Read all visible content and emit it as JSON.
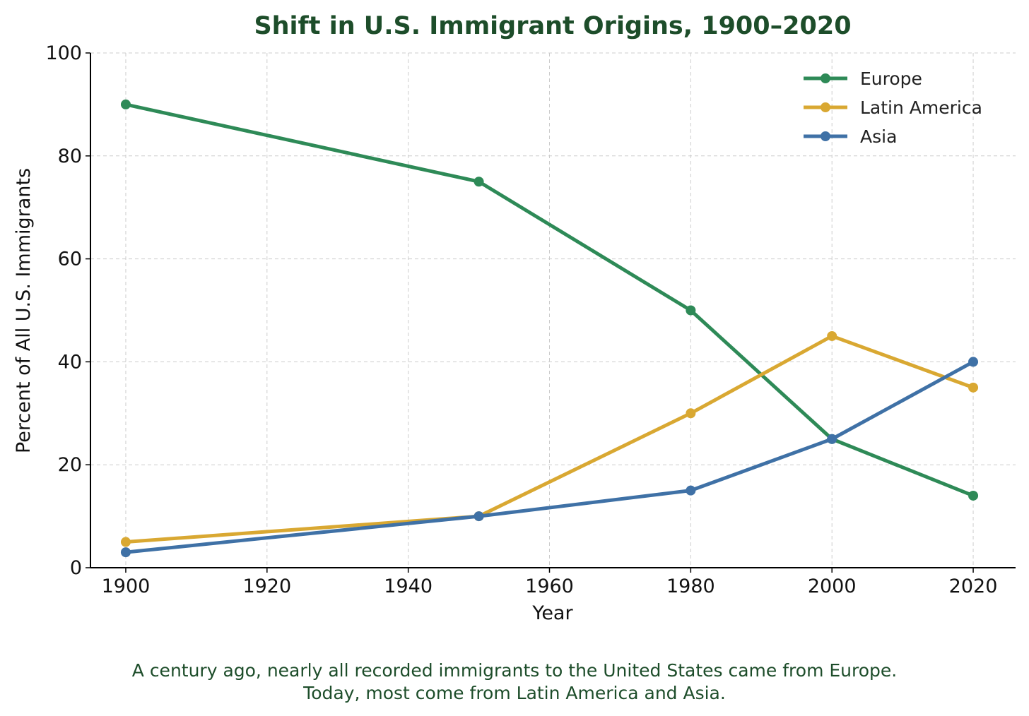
{
  "chart_data": {
    "type": "line",
    "title": "Shift in U.S. Immigrant Origins, 1900–2020",
    "xlabel": "Year",
    "ylabel": "Percent of All U.S. Immigrants",
    "xlim": [
      1895,
      2026
    ],
    "ylim": [
      0,
      100
    ],
    "xticks": [
      1900,
      1920,
      1940,
      1960,
      1980,
      2000,
      2020
    ],
    "yticks": [
      0,
      20,
      40,
      60,
      80,
      100
    ],
    "grid": true,
    "legend_position": "top-right",
    "series": [
      {
        "name": "Europe",
        "color": "#2e8a57",
        "x": [
          1900,
          1950,
          1980,
          2000,
          2020
        ],
        "y": [
          90,
          75,
          50,
          25,
          14
        ]
      },
      {
        "name": "Latin America",
        "color": "#d9a832",
        "x": [
          1900,
          1950,
          1980,
          2000,
          2020
        ],
        "y": [
          5,
          10,
          30,
          45,
          35
        ]
      },
      {
        "name": "Asia",
        "color": "#3f71a6",
        "x": [
          1900,
          1950,
          1980,
          2000,
          2020
        ],
        "y": [
          3,
          10,
          15,
          25,
          40
        ]
      }
    ]
  },
  "caption": {
    "line1": "A century ago, nearly all recorded immigrants to the United States came from Europe.",
    "line2": "Today, most come from Latin America and Asia."
  }
}
